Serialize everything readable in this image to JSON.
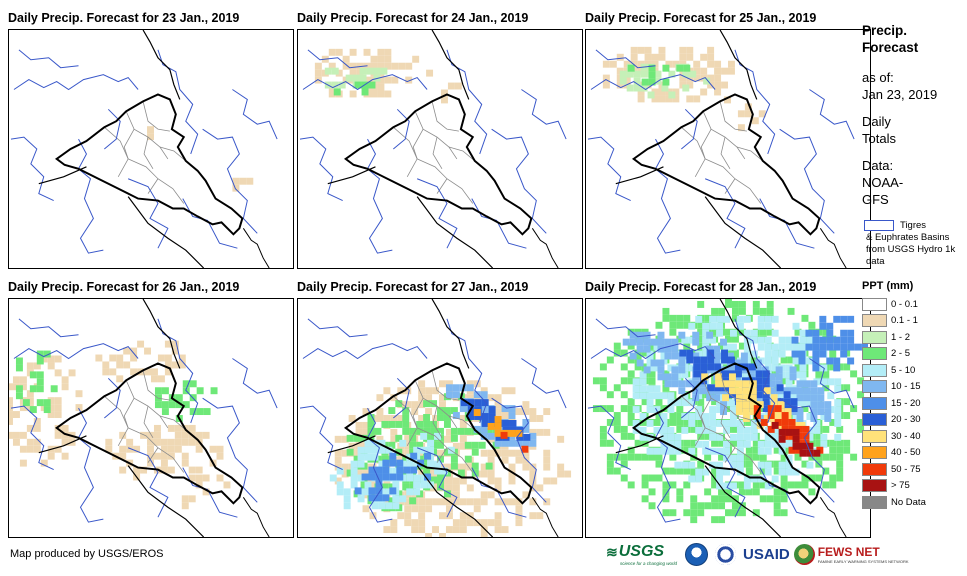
{
  "panels": [
    {
      "title": "Daily Precip. Forecast for 23 Jan., 2019"
    },
    {
      "title": "Daily Precip. Forecast for 24 Jan., 2019"
    },
    {
      "title": "Daily Precip. Forecast for 25 Jan., 2019"
    },
    {
      "title": "Daily Precip. Forecast for 26 Jan., 2019"
    },
    {
      "title": "Daily Precip. Forecast for 27 Jan., 2019"
    },
    {
      "title": "Daily Precip. Forecast for 28 Jan., 2019"
    }
  ],
  "legend": {
    "title_line1": "Precip.",
    "title_line2": "Forecast",
    "asof_label": "as of:",
    "asof_date": "Jan 23, 2019",
    "daily_line1": "Daily",
    "daily_line2": "Totals",
    "data_label": "Data:",
    "data_source_line1": "NOAA-",
    "data_source_line2": "GFS",
    "basin_line1": "Tigres",
    "basin_rest": "& Euphrates Basins from USGS Hydro 1k data",
    "ppt_title": "PPT (mm)",
    "classes": [
      {
        "label": "0 - 0.1",
        "color": "#ffffff"
      },
      {
        "label": "0.1 - 1",
        "color": "#efd8b4"
      },
      {
        "label": "1 - 2",
        "color": "#c5f0b8"
      },
      {
        "label": "2 - 5",
        "color": "#6ee878"
      },
      {
        "label": "5 - 10",
        "color": "#b3edf7"
      },
      {
        "label": "10 - 15",
        "color": "#7fb7f0"
      },
      {
        "label": "15 - 20",
        "color": "#4e8fe8"
      },
      {
        "label": "20 - 30",
        "color": "#2a5fd6"
      },
      {
        "label": "30 - 40",
        "color": "#ffe27a"
      },
      {
        "label": "40 - 50",
        "color": "#ffa21c"
      },
      {
        "label": "50 - 75",
        "color": "#f03a0a"
      },
      {
        "label": "> 75",
        "color": "#a81212"
      },
      {
        "label": "No Data",
        "color": "#888888"
      }
    ]
  },
  "footer": {
    "credit": "Map produced by USGS/EROS",
    "logo_usgs": "USGS",
    "logo_usgs_tag": "science for a changing world",
    "logo_usaid": "USAID",
    "logo_fews": "FEWS NET",
    "logo_fews_sub": "FAMINE EARLY WARNING SYSTEMS NETWORK"
  },
  "colors": {
    "basin_line": "#3957c9",
    "border_line": "#000000",
    "province_line": "#8c8c8c",
    "coast_line": "#000000"
  }
}
